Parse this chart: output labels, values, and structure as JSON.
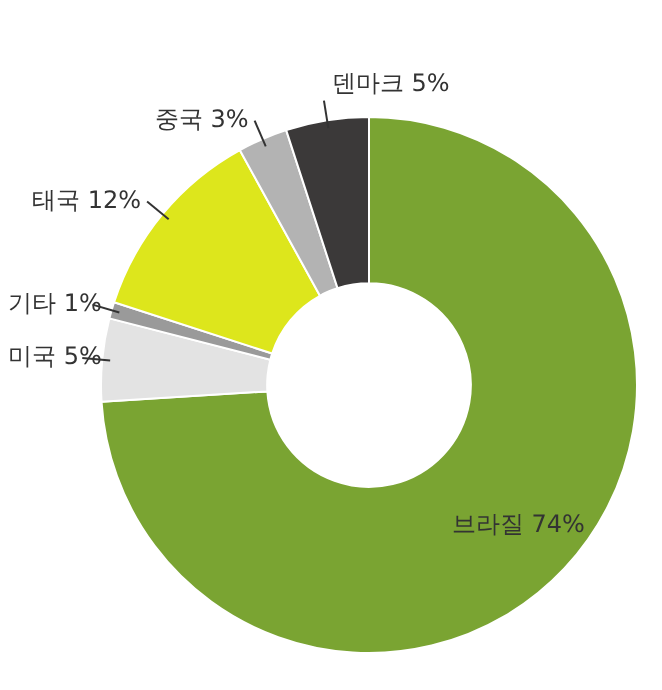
{
  "chart_data": {
    "type": "donut",
    "categories": [
      "브라질",
      "미국",
      "기타",
      "태국",
      "중국",
      "덴마크"
    ],
    "values": [
      74,
      5,
      1,
      12,
      3,
      5
    ],
    "value_labels": [
      "74%",
      "5%",
      "1%",
      "12%",
      "3%",
      "5%"
    ],
    "colors": [
      "#7aa432",
      "#e3e3e3",
      "#9a9a9a",
      "#dde61c",
      "#b3b3b3",
      "#3b3939"
    ],
    "legend": false
  }
}
